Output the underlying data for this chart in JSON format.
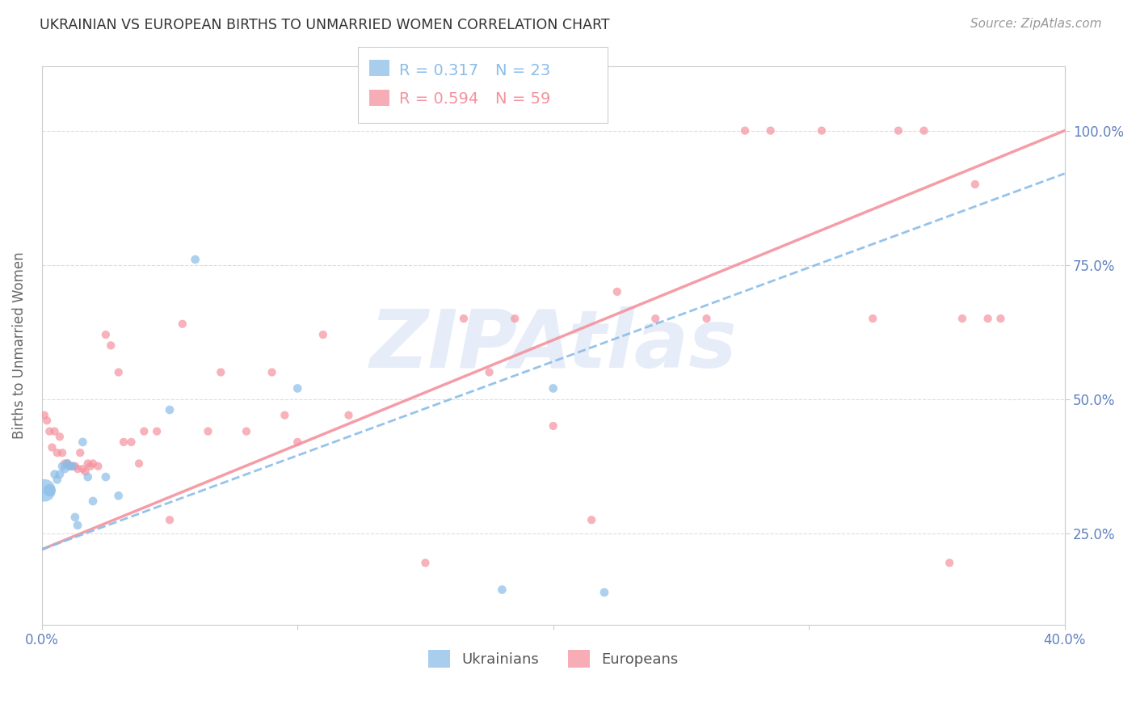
{
  "title": "UKRAINIAN VS EUROPEAN BIRTHS TO UNMARRIED WOMEN CORRELATION CHART",
  "source": "Source: ZipAtlas.com",
  "ylabel": "Births to Unmarried Women",
  "watermark": "ZIPAtlas",
  "xmin": 0.0,
  "xmax": 0.4,
  "ymin": 0.08,
  "ymax": 1.12,
  "xticks": [
    0.0,
    0.1,
    0.2,
    0.3,
    0.4
  ],
  "xtick_labels": [
    "0.0%",
    "",
    "",
    "",
    "40.0%"
  ],
  "ytick_positions": [
    0.25,
    0.5,
    0.75,
    1.0
  ],
  "ytick_labels": [
    "25.0%",
    "50.0%",
    "75.0%",
    "100.0%"
  ],
  "grid_color": "#dddddd",
  "axis_color": "#cccccc",
  "ukr_color": "#8bbde8",
  "eur_color": "#f4929e",
  "legend_R_ukr": "R = 0.317",
  "legend_N_ukr": "N = 23",
  "legend_R_eur": "R = 0.594",
  "legend_N_eur": "N = 59",
  "background_color": "#ffffff",
  "axis_label_color": "#6080c0",
  "watermark_color": "#c8d8f0",
  "ukr_points_x": [
    0.001,
    0.003,
    0.005,
    0.006,
    0.007,
    0.008,
    0.009,
    0.01,
    0.011,
    0.012,
    0.013,
    0.014,
    0.016,
    0.018,
    0.02,
    0.025,
    0.03,
    0.05,
    0.06,
    0.1,
    0.18,
    0.2,
    0.22
  ],
  "ukr_points_y": [
    0.33,
    0.33,
    0.36,
    0.35,
    0.36,
    0.375,
    0.37,
    0.38,
    0.375,
    0.375,
    0.28,
    0.265,
    0.42,
    0.355,
    0.31,
    0.355,
    0.32,
    0.48,
    0.76,
    0.52,
    0.145,
    0.52,
    0.14
  ],
  "ukr_sizes": [
    400,
    120,
    60,
    60,
    60,
    60,
    60,
    60,
    60,
    60,
    60,
    60,
    60,
    60,
    60,
    60,
    60,
    60,
    60,
    60,
    60,
    60,
    60
  ],
  "eur_points_x": [
    0.001,
    0.002,
    0.003,
    0.004,
    0.005,
    0.006,
    0.007,
    0.008,
    0.009,
    0.01,
    0.011,
    0.012,
    0.013,
    0.014,
    0.015,
    0.016,
    0.017,
    0.018,
    0.019,
    0.02,
    0.022,
    0.025,
    0.027,
    0.03,
    0.032,
    0.035,
    0.038,
    0.04,
    0.045,
    0.05,
    0.055,
    0.065,
    0.07,
    0.08,
    0.09,
    0.095,
    0.1,
    0.11,
    0.12,
    0.15,
    0.165,
    0.175,
    0.185,
    0.2,
    0.215,
    0.225,
    0.24,
    0.26,
    0.275,
    0.285,
    0.305,
    0.325,
    0.335,
    0.345,
    0.355,
    0.36,
    0.365,
    0.37,
    0.375
  ],
  "eur_points_y": [
    0.47,
    0.46,
    0.44,
    0.41,
    0.44,
    0.4,
    0.43,
    0.4,
    0.38,
    0.38,
    0.375,
    0.375,
    0.375,
    0.37,
    0.4,
    0.37,
    0.365,
    0.38,
    0.375,
    0.38,
    0.375,
    0.62,
    0.6,
    0.55,
    0.42,
    0.42,
    0.38,
    0.44,
    0.44,
    0.275,
    0.64,
    0.44,
    0.55,
    0.44,
    0.55,
    0.47,
    0.42,
    0.62,
    0.47,
    0.195,
    0.65,
    0.55,
    0.65,
    0.45,
    0.275,
    0.7,
    0.65,
    0.65,
    1.0,
    1.0,
    1.0,
    0.65,
    1.0,
    1.0,
    0.195,
    0.65,
    0.9,
    0.65,
    0.65
  ],
  "ukr_line_x": [
    0.0,
    0.4
  ],
  "ukr_line_y": [
    0.22,
    0.92
  ],
  "eur_line_x": [
    0.0,
    0.4
  ],
  "eur_line_y": [
    0.22,
    1.0
  ]
}
